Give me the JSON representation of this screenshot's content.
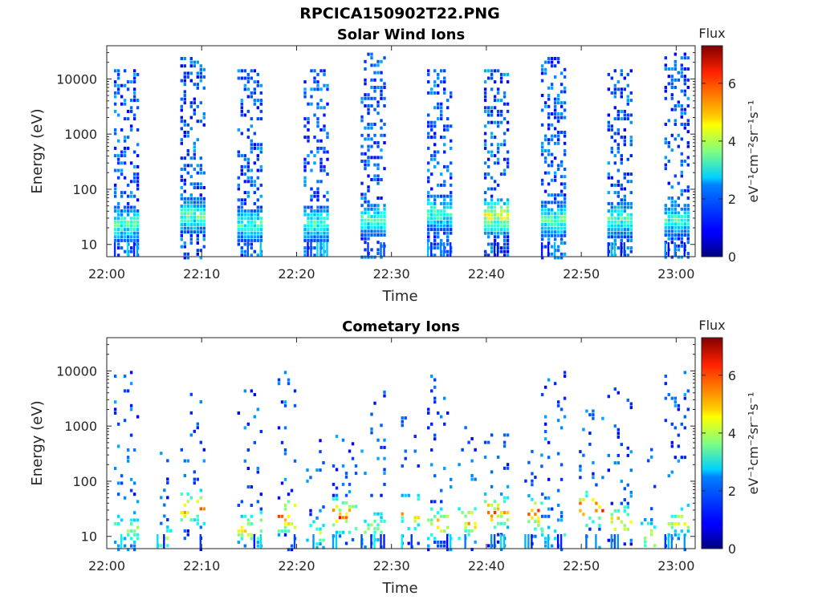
{
  "figure": {
    "title": "RPCICA150902T22.PNG"
  },
  "chart_data": [
    {
      "type": "heatmap",
      "title": "Solar Wind Ions",
      "xlabel": "Time",
      "ylabel": "Energy (eV)",
      "x_ticks": [
        "22:00",
        "22:10",
        "22:20",
        "22:30",
        "22:40",
        "22:50",
        "23:00"
      ],
      "x_range": [
        "22:00",
        "23:02"
      ],
      "y_scale": "log",
      "y_ticks": [
        10,
        100,
        1000,
        10000
      ],
      "y_range": [
        6,
        40000
      ],
      "colorbar": {
        "title": "Flux",
        "label": "eV⁻¹cm⁻²sr⁻¹s⁻¹",
        "ticks": [
          0,
          2,
          4,
          6
        ],
        "range": [
          0,
          7.3
        ],
        "colormap": "jet"
      },
      "bursts": [
        {
          "time": "22:02",
          "duration_min": 2.5,
          "emin": 6,
          "emax": 15000,
          "density": 0.35,
          "low_energy_peak_ev": 25,
          "peak_flux": 4.0
        },
        {
          "time": "22:09",
          "duration_min": 2.5,
          "emin": 6,
          "emax": 25000,
          "density": 0.35,
          "low_energy_peak_ev": 35,
          "peak_flux": 4.0
        },
        {
          "time": "22:15",
          "duration_min": 2.5,
          "emin": 6,
          "emax": 15000,
          "density": 0.35,
          "low_energy_peak_ev": 25,
          "peak_flux": 3.8
        },
        {
          "time": "22:22",
          "duration_min": 2.5,
          "emin": 6,
          "emax": 15000,
          "density": 0.35,
          "low_energy_peak_ev": 25,
          "peak_flux": 3.8
        },
        {
          "time": "22:28",
          "duration_min": 2.5,
          "emin": 6,
          "emax": 30000,
          "density": 0.35,
          "low_energy_peak_ev": 30,
          "peak_flux": 3.8
        },
        {
          "time": "22:35",
          "duration_min": 2.5,
          "emin": 6,
          "emax": 15000,
          "density": 0.35,
          "low_energy_peak_ev": 40,
          "peak_flux": 4.0
        },
        {
          "time": "22:41",
          "duration_min": 2.5,
          "emin": 6,
          "emax": 15000,
          "density": 0.35,
          "low_energy_peak_ev": 35,
          "peak_flux": 5.2
        },
        {
          "time": "22:47",
          "duration_min": 2.5,
          "emin": 6,
          "emax": 25000,
          "density": 0.35,
          "low_energy_peak_ev": 30,
          "peak_flux": 4.0
        },
        {
          "time": "22:54",
          "duration_min": 2.5,
          "emin": 6,
          "emax": 15000,
          "density": 0.35,
          "low_energy_peak_ev": 30,
          "peak_flux": 4.0
        },
        {
          "time": "23:00",
          "duration_min": 2.5,
          "emin": 6,
          "emax": 30000,
          "density": 0.35,
          "low_energy_peak_ev": 30,
          "peak_flux": 3.8
        }
      ]
    },
    {
      "type": "heatmap",
      "title": "Cometary Ions",
      "xlabel": "Time",
      "ylabel": "Energy (eV)",
      "x_ticks": [
        "22:00",
        "22:10",
        "22:20",
        "22:30",
        "22:40",
        "22:50",
        "23:00"
      ],
      "x_range": [
        "22:00",
        "23:02"
      ],
      "y_scale": "log",
      "y_ticks": [
        10,
        100,
        1000,
        10000
      ],
      "y_range": [
        6,
        40000
      ],
      "colorbar": {
        "title": "Flux",
        "label": "eV⁻¹cm⁻²sr⁻¹s⁻¹",
        "ticks": [
          0,
          2,
          4,
          6
        ],
        "range": [
          0,
          7.3
        ],
        "colormap": "jet"
      },
      "bursts": [
        {
          "time": "22:02",
          "duration_min": 2.5,
          "emin": 6,
          "emax": 10000,
          "density": 0.1,
          "low_energy_peak_ev": 15,
          "peak_flux": 4.8
        },
        {
          "time": "22:06",
          "duration_min": 1.5,
          "emin": 6,
          "emax": 400,
          "density": 0.1,
          "low_energy_peak_ev": 10,
          "peak_flux": 4.5
        },
        {
          "time": "22:09",
          "duration_min": 2.5,
          "emin": 6,
          "emax": 4000,
          "density": 0.1,
          "low_energy_peak_ev": 35,
          "peak_flux": 6.2
        },
        {
          "time": "22:15",
          "duration_min": 2.5,
          "emin": 6,
          "emax": 10000,
          "density": 0.1,
          "low_energy_peak_ev": 15,
          "peak_flux": 5.5
        },
        {
          "time": "22:19",
          "duration_min": 2.0,
          "emin": 6,
          "emax": 10000,
          "density": 0.1,
          "low_energy_peak_ev": 25,
          "peak_flux": 6.8
        },
        {
          "time": "22:22",
          "duration_min": 2.0,
          "emin": 6,
          "emax": 2000,
          "density": 0.1,
          "low_energy_peak_ev": 12,
          "peak_flux": 4.5
        },
        {
          "time": "22:25",
          "duration_min": 2.5,
          "emin": 6,
          "emax": 1500,
          "density": 0.1,
          "low_energy_peak_ev": 25,
          "peak_flux": 6.8
        },
        {
          "time": "22:28",
          "duration_min": 2.5,
          "emin": 6,
          "emax": 6000,
          "density": 0.1,
          "low_energy_peak_ev": 15,
          "peak_flux": 4.8
        },
        {
          "time": "22:32",
          "duration_min": 2.0,
          "emin": 6,
          "emax": 1500,
          "density": 0.1,
          "low_energy_peak_ev": 30,
          "peak_flux": 6.0
        },
        {
          "time": "22:35",
          "duration_min": 2.5,
          "emin": 6,
          "emax": 10000,
          "density": 0.1,
          "low_energy_peak_ev": 18,
          "peak_flux": 5.8
        },
        {
          "time": "22:38",
          "duration_min": 2.0,
          "emin": 6,
          "emax": 1000,
          "density": 0.1,
          "low_energy_peak_ev": 20,
          "peak_flux": 6.3
        },
        {
          "time": "22:41",
          "duration_min": 2.5,
          "emin": 6,
          "emax": 1000,
          "density": 0.1,
          "low_energy_peak_ev": 30,
          "peak_flux": 6.5
        },
        {
          "time": "22:45",
          "duration_min": 2.0,
          "emin": 6,
          "emax": 800,
          "density": 0.1,
          "low_energy_peak_ev": 28,
          "peak_flux": 6.8
        },
        {
          "time": "22:47",
          "duration_min": 2.5,
          "emin": 6,
          "emax": 10000,
          "density": 0.1,
          "low_energy_peak_ev": 12,
          "peak_flux": 4.0
        },
        {
          "time": "22:51",
          "duration_min": 2.5,
          "emin": 6,
          "emax": 2000,
          "density": 0.1,
          "low_energy_peak_ev": 35,
          "peak_flux": 6.8
        },
        {
          "time": "22:54",
          "duration_min": 2.5,
          "emin": 6,
          "emax": 5000,
          "density": 0.1,
          "low_energy_peak_ev": 20,
          "peak_flux": 6.0
        },
        {
          "time": "22:57",
          "duration_min": 1.5,
          "emin": 6,
          "emax": 400,
          "density": 0.1,
          "low_energy_peak_ev": 10,
          "peak_flux": 5.5
        },
        {
          "time": "23:00",
          "duration_min": 2.5,
          "emin": 6,
          "emax": 10000,
          "density": 0.1,
          "low_energy_peak_ev": 20,
          "peak_flux": 5.0
        }
      ]
    }
  ]
}
